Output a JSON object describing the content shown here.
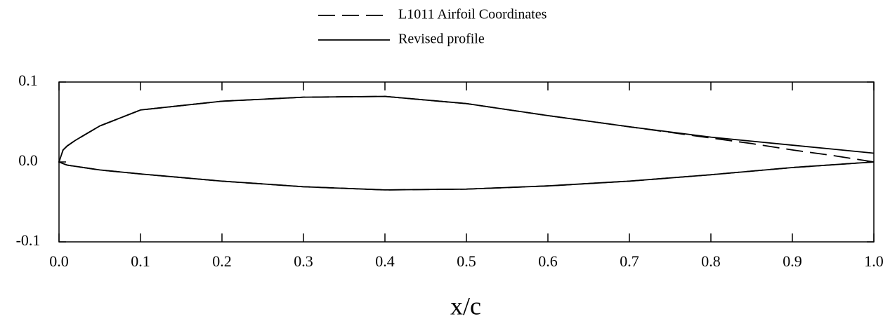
{
  "chart_data": {
    "type": "line",
    "xlabel": "x/c",
    "xlim": [
      0,
      1
    ],
    "ylim": [
      -0.1,
      0.1
    ],
    "xticks": [
      {
        "value": 0,
        "label": "0.0"
      },
      0.1,
      0.2,
      0.3,
      0.4,
      0.5,
      0.6,
      0.7,
      0.8,
      0.9,
      {
        "value": 1,
        "label": "1.0"
      }
    ],
    "yticks": [
      {
        "value": -0.1,
        "label": "-0.1"
      },
      {
        "value": 0,
        "label": "0.0"
      },
      0.1
    ],
    "grid": false,
    "legend": "top",
    "series": [
      {
        "name": "L1011 Airfoil Coordinates",
        "color": "#000000",
        "dash": true,
        "x": [
          1,
          0.95,
          0.9,
          0.85,
          0.8,
          0.7,
          0.6,
          0.5,
          0.4,
          0.3,
          0.2,
          0.1,
          0.05,
          0.02,
          0.01,
          0.005,
          0,
          0.005,
          0.01,
          0.05,
          0.1,
          0.2,
          0.3,
          0.4,
          0.5,
          0.6,
          0.7,
          0.8,
          0.9,
          1
        ],
        "values": [
          0,
          0.008,
          0.015,
          0.023,
          0.03,
          0.044,
          0.058,
          0.073,
          0.082,
          0.081,
          0.076,
          0.065,
          0.045,
          0.027,
          0.02,
          0.015,
          0,
          -0.002,
          -0.004,
          -0.01,
          -0.015,
          -0.024,
          -0.031,
          -0.035,
          -0.034,
          -0.03,
          -0.024,
          -0.016,
          -0.007,
          0
        ]
      },
      {
        "name": "Revised profile",
        "color": "#000000",
        "dash": false,
        "x": [
          1,
          0.95,
          0.9,
          0.85,
          0.8,
          0.7,
          0.6,
          0.5,
          0.4,
          0.3,
          0.2,
          0.1,
          0.05,
          0.02,
          0.01,
          0.005,
          0,
          0.005,
          0.01,
          0.05,
          0.1,
          0.2,
          0.3,
          0.4,
          0.5,
          0.6,
          0.7,
          0.8,
          0.9,
          1
        ],
        "values": [
          0.011,
          0.016,
          0.021,
          0.026,
          0.031,
          0.044,
          0.058,
          0.073,
          0.082,
          0.081,
          0.076,
          0.065,
          0.045,
          0.027,
          0.02,
          0.015,
          0,
          -0.002,
          -0.004,
          -0.01,
          -0.015,
          -0.024,
          -0.031,
          -0.035,
          -0.034,
          -0.03,
          -0.024,
          -0.016,
          -0.007,
          0
        ]
      }
    ]
  }
}
